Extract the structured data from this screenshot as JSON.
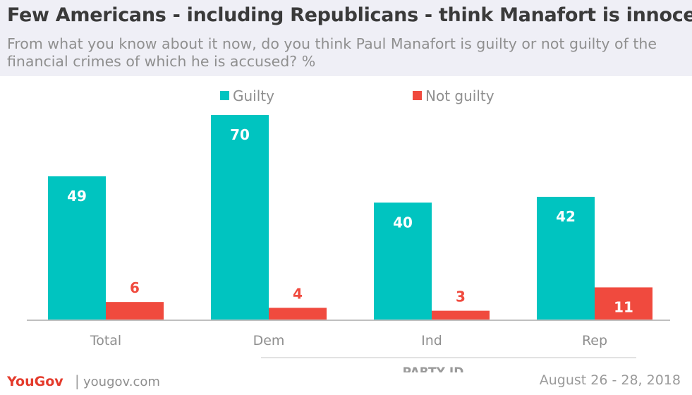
{
  "header": {
    "title": "Few Americans - including Republicans - think Manafort is innocent",
    "subtitle": "From what you know about it now, do you think Paul Manafort is guilty or not guilty of the financial crimes of which he is accused? %"
  },
  "chart_data": {
    "type": "bar",
    "categories": [
      "Total",
      "Dem",
      "Ind",
      "Rep"
    ],
    "series": [
      {
        "name": "Guilty",
        "values": [
          49,
          70,
          40,
          42
        ],
        "color": "#00c4c0"
      },
      {
        "name": "Not guilty",
        "values": [
          6,
          4,
          3,
          11
        ],
        "color": "#f04a3e"
      }
    ],
    "group_label": "PARTY ID",
    "ylim": [
      0,
      70
    ],
    "grid": false,
    "legend": "top-center"
  },
  "footer": {
    "logo": "YouGov",
    "separator": "|",
    "url": "yougov.com",
    "date": "August 26 - 28, 2018"
  }
}
